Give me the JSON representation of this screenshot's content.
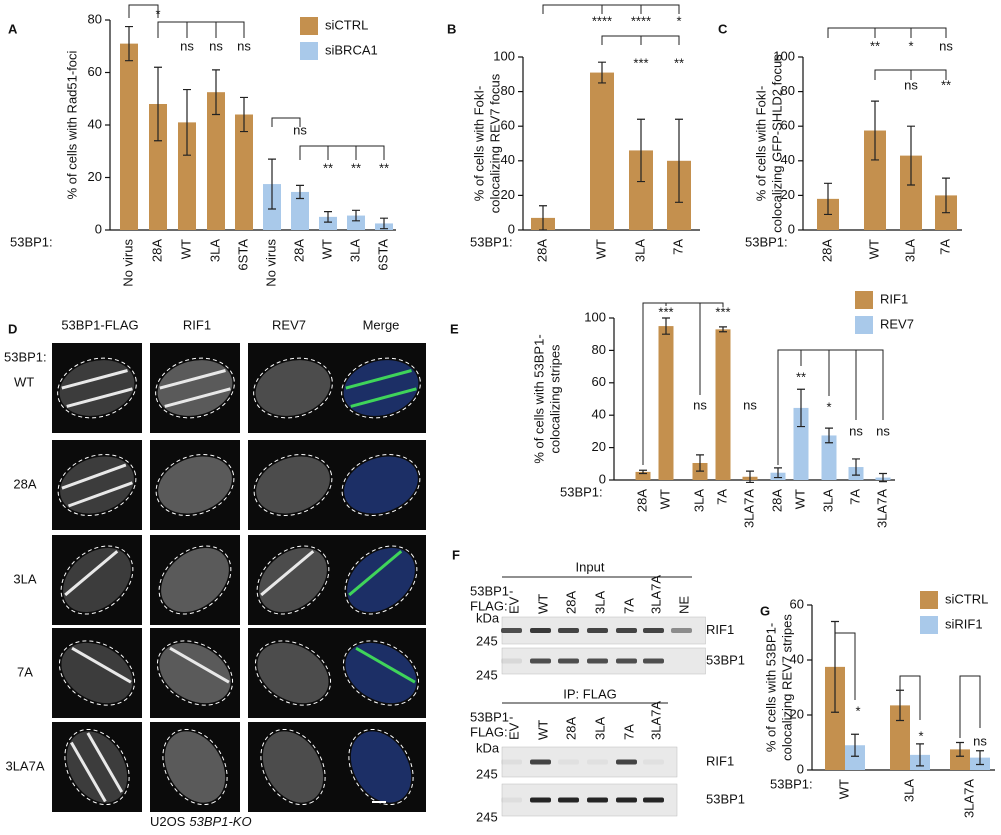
{
  "panel_labels": [
    "A",
    "B",
    "C",
    "D",
    "E",
    "F",
    "G"
  ],
  "chart_data": [
    {
      "type": "bar",
      "ylabel": [
        "% of cells with Rad51-foci"
      ],
      "x_prefix": "53BP1:",
      "categories": [
        "No virus",
        "28A",
        "WT",
        "3LA",
        "6STA",
        "No virus",
        "28A",
        "WT",
        "3LA",
        "6STA"
      ],
      "series": [
        {
          "name": "siCTRL",
          "color": "#c4904e",
          "values": [
            71,
            48,
            41,
            52.5,
            44,
            null,
            null,
            null,
            null,
            null
          ],
          "errors": [
            6.5,
            14,
            12.5,
            8.5,
            6.5,
            null,
            null,
            null,
            null,
            null
          ]
        },
        {
          "name": "siBRCA1",
          "color": "#a9c9ea",
          "values": [
            null,
            null,
            null,
            null,
            null,
            17.5,
            14.5,
            5,
            5.5,
            2.5
          ],
          "errors": [
            null,
            null,
            null,
            null,
            null,
            9.5,
            2.5,
            2,
            2,
            2
          ]
        }
      ],
      "ylim": [
        0,
        80
      ],
      "yticks": [
        0,
        20,
        40,
        60,
        80
      ],
      "annotations": [
        "*",
        "ns",
        "ns",
        "ns",
        "ns",
        "**",
        "**",
        "**"
      ]
    },
    {
      "type": "bar",
      "ylabel": [
        "% of cells with FokI-",
        "colocalizing REV7 focus"
      ],
      "x_prefix": "53BP1:",
      "categories": [
        "28A",
        "WT",
        "3LA",
        "7A"
      ],
      "series": [
        {
          "color": "#c4904e",
          "values": [
            7,
            91,
            46,
            40
          ],
          "errors": [
            7,
            6,
            18,
            24
          ]
        }
      ],
      "ylim": [
        0,
        100
      ],
      "yticks": [
        0,
        20,
        40,
        60,
        80,
        100
      ],
      "annotations": [
        "****",
        "****",
        "*",
        "***",
        "**"
      ]
    },
    {
      "type": "bar",
      "ylabel": [
        "% of cells with FokI-",
        "colocalizing GFP-SHLD2 focus"
      ],
      "x_prefix": "53BP1:",
      "categories": [
        "28A",
        "WT",
        "3LA",
        "7A"
      ],
      "series": [
        {
          "color": "#c4904e",
          "values": [
            18,
            57.5,
            43,
            20
          ],
          "errors": [
            9,
            17,
            17,
            10
          ]
        }
      ],
      "ylim": [
        0,
        100
      ],
      "yticks": [
        0,
        20,
        40,
        60,
        80,
        100
      ],
      "annotations": [
        "**",
        "*",
        "ns",
        "ns",
        "**"
      ]
    },
    {
      "type": "bar",
      "ylabel": [
        "% of cells with 53BP1-",
        "colocalizing stripes"
      ],
      "x_prefix": "53BP1:",
      "categories": [
        "28A",
        "WT",
        "3LA",
        "7A",
        "3LA7A",
        "28A",
        "WT",
        "3LA",
        "7A",
        "3LA7A"
      ],
      "series": [
        {
          "name": "RIF1",
          "color": "#c4904e",
          "values": [
            5,
            95,
            10.5,
            93,
            2,
            null,
            null,
            null,
            null,
            null
          ],
          "errors": [
            1,
            5,
            5,
            1.5,
            3.5,
            null,
            null,
            null,
            null,
            null
          ]
        },
        {
          "name": "REV7",
          "color": "#a9c9ea",
          "values": [
            null,
            null,
            null,
            null,
            null,
            4.5,
            44.5,
            27.5,
            8,
            1.5
          ],
          "errors": [
            null,
            null,
            null,
            null,
            null,
            3,
            11.5,
            4.5,
            5,
            2.5
          ]
        }
      ],
      "ylim": [
        0,
        100
      ],
      "yticks": [
        0,
        20,
        40,
        60,
        80,
        100
      ],
      "annotations": [
        "***",
        "ns",
        "***",
        "ns",
        "**",
        "*",
        "ns",
        "ns"
      ]
    },
    {
      "type": "bar",
      "ylabel": [
        "% of cells with 53BP1-",
        "colocalizing REV7 stripes"
      ],
      "x_prefix": "53BP1:",
      "categories": [
        "WT",
        "3LA",
        "3LA7A"
      ],
      "series": [
        {
          "name": "siCTRL",
          "color": "#c4904e",
          "values": [
            37.5,
            23.5,
            7.5
          ],
          "errors": [
            16.5,
            5.5,
            2.5
          ]
        },
        {
          "name": "siRIF1",
          "color": "#a9c9ea",
          "values": [
            9,
            5.5,
            4.5
          ],
          "errors": [
            4,
            4,
            2.5
          ]
        }
      ],
      "ylim": [
        0,
        60
      ],
      "yticks": [
        0,
        20,
        40,
        60
      ],
      "annotations": [
        "*",
        "*",
        "ns"
      ]
    }
  ],
  "panel_d": {
    "channels": [
      "53BP1-FLAG",
      "RIF1",
      "REV7",
      "Merge"
    ],
    "channel_colors": [
      "#222222",
      "#3fae3f",
      "#3a4fb8",
      "#c9c21e"
    ],
    "prefix": "53BP1:",
    "rows": [
      "WT",
      "28A",
      "3LA",
      "7A",
      "3LA7A"
    ],
    "caption": {
      "text": "U2OS",
      "italic": "53BP1-KO"
    }
  },
  "panel_f": {
    "input_title": "Input",
    "ip_title": "IP: FLAG",
    "lane_header": [
      "53BP1-",
      "FLAG:"
    ],
    "lanes_input": [
      "EV",
      "WT",
      "28A",
      "3LA",
      "7A",
      "3LA7A",
      "NE"
    ],
    "lanes_ip": [
      "EV",
      "WT",
      "28A",
      "3LA",
      "7A",
      "3LA7A"
    ],
    "kda": "kDa",
    "marker": 245,
    "blots": [
      "RIF1",
      "53BP1"
    ]
  }
}
